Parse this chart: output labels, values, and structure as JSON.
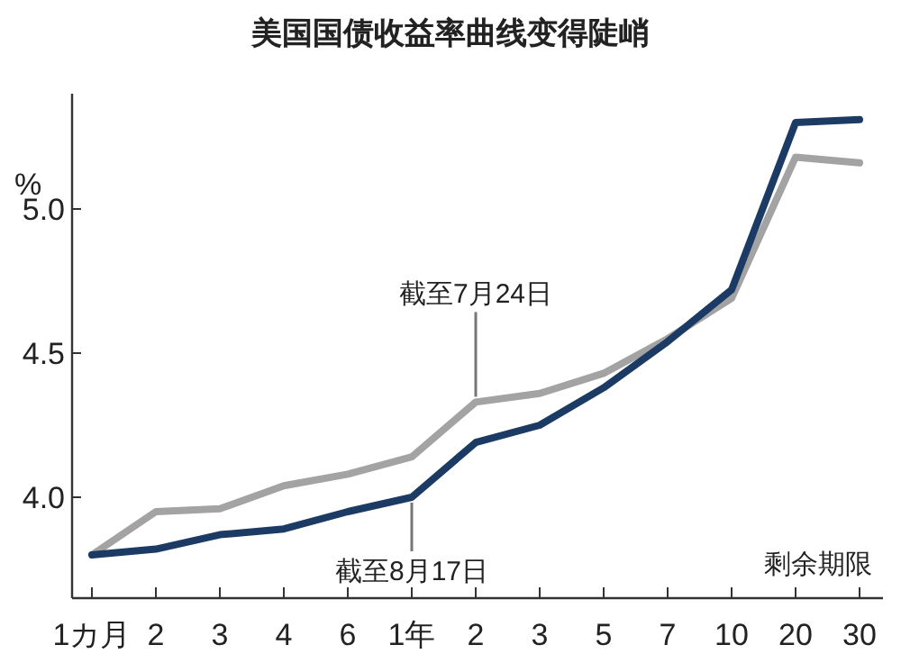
{
  "chart_data": {
    "type": "line",
    "title": "美国国债收益率曲线变得陡峭",
    "ylabel": "%",
    "xlabel": "剩余期限",
    "categories": [
      "1カ月",
      "2",
      "3",
      "4",
      "6",
      "1年",
      "2",
      "3",
      "5",
      "7",
      "10",
      "20",
      "30"
    ],
    "series": [
      {
        "name": "截至7月24日",
        "color": "#a3a3a3",
        "values": [
          3.8,
          3.95,
          3.96,
          4.04,
          4.08,
          4.14,
          4.33,
          4.36,
          4.43,
          4.55,
          4.69,
          5.18,
          5.16
        ]
      },
      {
        "name": "截至8月17日",
        "color": "#1b3a64",
        "values": [
          3.8,
          3.82,
          3.87,
          3.89,
          3.95,
          4.0,
          4.19,
          4.25,
          4.38,
          4.54,
          4.72,
          5.3,
          5.31
        ]
      }
    ],
    "ylim": [
      3.65,
      5.4
    ],
    "yticks": [
      {
        "value": 4,
        "label": "4.0"
      },
      {
        "value": 4.5,
        "label": "4.5"
      },
      {
        "value": 5,
        "label": "5.0"
      }
    ],
    "grid": false,
    "marker": "none",
    "line_style": "solid"
  }
}
